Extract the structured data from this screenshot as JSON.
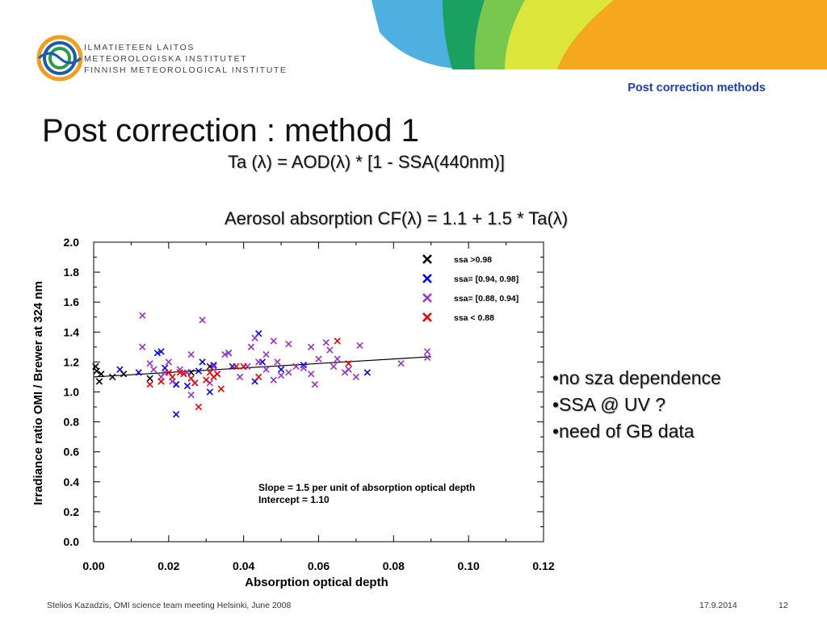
{
  "header": {
    "logo_lines": [
      "ILMATIETEEN LAITOS",
      "METEOROLOGISKA INSTITUTET",
      "FINNISH METEOROLOGICAL INSTITUTE"
    ],
    "section_label": "Post correction methods",
    "banner_colors": [
      "#4db0e0",
      "#1aa060",
      "#78c850",
      "#dde63a",
      "#f5a81c"
    ],
    "logo_colors": [
      "#1a5ca8",
      "#f0a020",
      "#2a9c48"
    ]
  },
  "title": "Post correction : method 1",
  "formulas": {
    "ta": "Ta (λ) = AOD(λ) *  [1 - SSA(440nm)]",
    "cf": "Aerosol absorption CF(λ) = 1.1 + 1.5 * Ta(λ)"
  },
  "bullets": [
    "•no sza dependence",
    "•SSA @ UV ?",
    "•need of GB data"
  ],
  "footer": {
    "left": "Stelios Kazadzis, OMI science team meeting Helsinki, June 2008",
    "date": "17.9.2014",
    "page": "12"
  },
  "chart_data": {
    "type": "scatter",
    "xlabel": "Absorption optical depth",
    "ylabel": "Irradiance ratio OMI / Brewer at 324 nm",
    "xlim": [
      0,
      0.12
    ],
    "ylim": [
      0,
      2.0
    ],
    "x_ticks": [
      "0.00",
      "0.02",
      "0.04",
      "0.06",
      "0.08",
      "0.10",
      "0.12"
    ],
    "y_ticks": [
      "0.0",
      "0.2",
      "0.4",
      "0.6",
      "0.8",
      "1.0",
      "1.2",
      "1.4",
      "1.6",
      "1.8",
      "2.0"
    ],
    "legend_position": "top-right",
    "marker": "x",
    "annotation": [
      "Slope = 1.5 per unit of absorption optical depth",
      "Intercept = 1.10"
    ],
    "fit_line": {
      "slope": 1.5,
      "intercept": 1.1,
      "x_range": [
        0,
        0.09
      ],
      "color": "#000000"
    },
    "series": [
      {
        "name": "ssa >0.98",
        "color": "#000000",
        "points": [
          [
            0.0005,
            1.17
          ],
          [
            0.0008,
            1.14
          ],
          [
            0.0015,
            1.07
          ],
          [
            0.002,
            1.12
          ],
          [
            0.005,
            1.1
          ],
          [
            0.008,
            1.12
          ],
          [
            0.015,
            1.09
          ],
          [
            0.022,
            1.05
          ],
          [
            0.026,
            1.13
          ],
          [
            0.031,
            1.17
          ]
        ]
      },
      {
        "name": "ssa= [0.94, 0.98]",
        "color": "#0000ff",
        "points": [
          [
            0.007,
            1.15
          ],
          [
            0.012,
            1.13
          ],
          [
            0.017,
            1.26
          ],
          [
            0.018,
            1.27
          ],
          [
            0.019,
            1.16
          ],
          [
            0.022,
            0.85
          ],
          [
            0.022,
            1.05
          ],
          [
            0.025,
            1.04
          ],
          [
            0.028,
            1.14
          ],
          [
            0.029,
            1.2
          ],
          [
            0.031,
            1.0
          ],
          [
            0.032,
            1.18
          ],
          [
            0.036,
            1.26
          ],
          [
            0.037,
            1.17
          ],
          [
            0.043,
            1.07
          ],
          [
            0.044,
            1.39
          ],
          [
            0.045,
            1.2
          ],
          [
            0.05,
            1.15
          ],
          [
            0.056,
            1.18
          ],
          [
            0.073,
            1.13
          ]
        ]
      },
      {
        "name": "ssa= [0.88, 0.94]",
        "color": "#9933cc",
        "points": [
          [
            0.013,
            1.51
          ],
          [
            0.013,
            1.3
          ],
          [
            0.015,
            1.19
          ],
          [
            0.016,
            1.15
          ],
          [
            0.018,
            1.1
          ],
          [
            0.019,
            1.13
          ],
          [
            0.02,
            1.2
          ],
          [
            0.021,
            1.07
          ],
          [
            0.023,
            1.15
          ],
          [
            0.025,
            1.13
          ],
          [
            0.026,
            1.25
          ],
          [
            0.026,
            0.98
          ],
          [
            0.027,
            1.06
          ],
          [
            0.029,
            1.48
          ],
          [
            0.031,
            1.06
          ],
          [
            0.032,
            1.17
          ],
          [
            0.033,
            1.12
          ],
          [
            0.035,
            1.25
          ],
          [
            0.036,
            1.26
          ],
          [
            0.039,
            1.1
          ],
          [
            0.041,
            1.17
          ],
          [
            0.042,
            1.3
          ],
          [
            0.043,
            1.36
          ],
          [
            0.044,
            1.2
          ],
          [
            0.046,
            1.25
          ],
          [
            0.046,
            1.15
          ],
          [
            0.048,
            1.34
          ],
          [
            0.048,
            1.08
          ],
          [
            0.049,
            1.2
          ],
          [
            0.05,
            1.11
          ],
          [
            0.052,
            1.32
          ],
          [
            0.052,
            1.13
          ],
          [
            0.054,
            1.17
          ],
          [
            0.056,
            1.16
          ],
          [
            0.058,
            1.3
          ],
          [
            0.058,
            1.12
          ],
          [
            0.059,
            1.05
          ],
          [
            0.06,
            1.22
          ],
          [
            0.062,
            1.33
          ],
          [
            0.063,
            1.28
          ],
          [
            0.064,
            1.17
          ],
          [
            0.065,
            1.22
          ],
          [
            0.067,
            1.13
          ],
          [
            0.068,
            1.15
          ],
          [
            0.07,
            1.1
          ],
          [
            0.071,
            1.31
          ],
          [
            0.082,
            1.19
          ],
          [
            0.089,
            1.27
          ],
          [
            0.089,
            1.23
          ]
        ]
      },
      {
        "name": "ssa < 0.88",
        "color": "#ee0000",
        "points": [
          [
            0.015,
            1.05
          ],
          [
            0.018,
            1.07
          ],
          [
            0.02,
            1.13
          ],
          [
            0.021,
            1.1
          ],
          [
            0.023,
            1.13
          ],
          [
            0.024,
            1.12
          ],
          [
            0.026,
            1.09
          ],
          [
            0.027,
            1.06
          ],
          [
            0.028,
            0.9
          ],
          [
            0.03,
            1.08
          ],
          [
            0.031,
            1.13
          ],
          [
            0.032,
            1.1
          ],
          [
            0.033,
            1.12
          ],
          [
            0.034,
            1.02
          ],
          [
            0.038,
            1.17
          ],
          [
            0.04,
            1.17
          ],
          [
            0.044,
            1.1
          ],
          [
            0.065,
            1.34
          ],
          [
            0.068,
            1.19
          ]
        ]
      }
    ]
  }
}
